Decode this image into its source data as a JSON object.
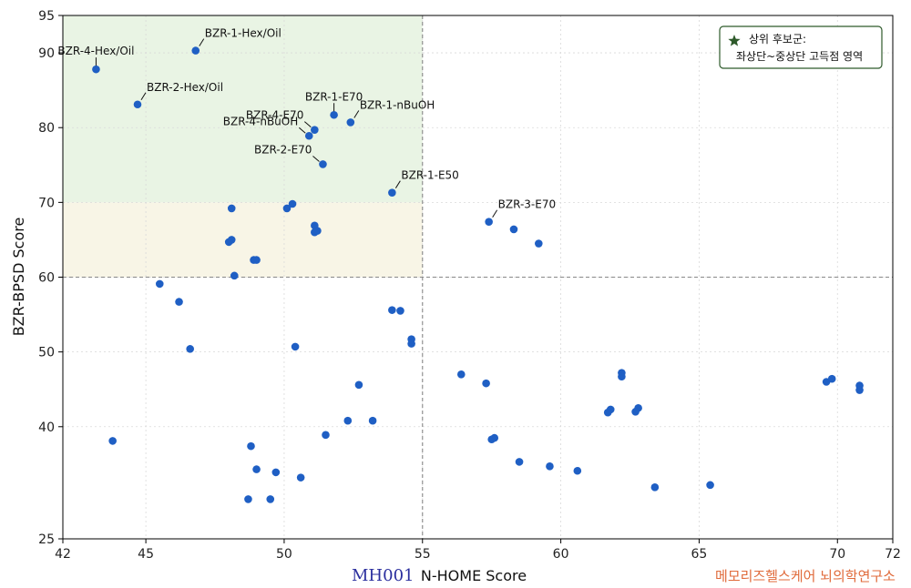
{
  "chart_data": {
    "type": "scatter",
    "xlabel": "N-HOME Score",
    "ylabel": "BZR-BPSD Score",
    "xlim": [
      42,
      72
    ],
    "ylim": [
      25,
      95
    ],
    "x_ticks": [
      42,
      45,
      50,
      55,
      60,
      65,
      70,
      72
    ],
    "y_ticks": [
      25,
      40,
      50,
      60,
      70,
      80,
      90,
      95
    ],
    "x_threshold": 55,
    "y_threshold": 60,
    "grid": true,
    "colors": {
      "point": "#1f5fc4",
      "zone_green": "#e9f4e4",
      "zone_yellow": "#f8f5e6",
      "legend_star": "#2e5a2b",
      "legend_border": "#2e5a2b"
    },
    "legend": {
      "position": "top-right",
      "marker": "star",
      "text": [
        "상위 후보군:",
        "좌상단~중상단 고득점 영역"
      ]
    },
    "annotations": [
      {
        "text": "BZR-1-Hex/Oil",
        "x": 46.8,
        "y": 90.3,
        "side": "right"
      },
      {
        "text": "BZR-4-Hex/Oil",
        "x": 43.2,
        "y": 87.8,
        "side": "up"
      },
      {
        "text": "BZR-2-Hex/Oil",
        "x": 44.7,
        "y": 83.1,
        "side": "right"
      },
      {
        "text": "BZR-1-E70",
        "x": 51.8,
        "y": 81.7,
        "side": "up"
      },
      {
        "text": "BZR-1-nBuOH",
        "x": 52.4,
        "y": 80.7,
        "side": "right"
      },
      {
        "text": "BZR-4-E70",
        "x": 51.1,
        "y": 79.7,
        "side": "left"
      },
      {
        "text": "BZR-4-nBuOH",
        "x": 50.9,
        "y": 78.9,
        "side": "left"
      },
      {
        "text": "BZR-2-E70",
        "x": 51.4,
        "y": 75.1,
        "side": "left"
      },
      {
        "text": "BZR-1-E50",
        "x": 53.9,
        "y": 71.3,
        "side": "right"
      },
      {
        "text": "BZR-3-E70",
        "x": 57.4,
        "y": 67.4,
        "side": "right"
      }
    ],
    "points": [
      [
        46.8,
        90.3
      ],
      [
        43.2,
        87.8
      ],
      [
        44.7,
        83.1
      ],
      [
        51.8,
        81.7
      ],
      [
        52.4,
        80.7
      ],
      [
        51.1,
        79.7
      ],
      [
        50.9,
        78.9
      ],
      [
        51.4,
        75.1
      ],
      [
        53.9,
        71.3
      ],
      [
        57.4,
        67.4
      ],
      [
        58.3,
        66.4
      ],
      [
        59.2,
        64.5
      ],
      [
        48.1,
        69.2
      ],
      [
        50.1,
        69.2
      ],
      [
        50.3,
        69.8
      ],
      [
        51.1,
        66.9
      ],
      [
        51.2,
        66.2
      ],
      [
        51.1,
        66.0
      ],
      [
        48.1,
        65.0
      ],
      [
        48.0,
        64.7
      ],
      [
        48.9,
        62.3
      ],
      [
        49.0,
        62.3
      ],
      [
        48.2,
        60.2
      ],
      [
        45.5,
        59.1
      ],
      [
        46.2,
        56.7
      ],
      [
        53.9,
        55.6
      ],
      [
        54.2,
        55.5
      ],
      [
        54.6,
        51.7
      ],
      [
        54.6,
        51.1
      ],
      [
        46.6,
        50.4
      ],
      [
        50.4,
        50.7
      ],
      [
        56.4,
        47.0
      ],
      [
        57.3,
        45.8
      ],
      [
        52.7,
        45.6
      ],
      [
        52.3,
        40.8
      ],
      [
        53.2,
        40.8
      ],
      [
        51.5,
        38.9
      ],
      [
        57.6,
        38.5
      ],
      [
        57.5,
        38.3
      ],
      [
        43.8,
        38.1
      ],
      [
        48.8,
        37.4
      ],
      [
        49.0,
        34.3
      ],
      [
        49.7,
        33.9
      ],
      [
        50.6,
        33.2
      ],
      [
        58.5,
        35.3
      ],
      [
        59.6,
        34.7
      ],
      [
        60.6,
        34.1
      ],
      [
        62.2,
        47.2
      ],
      [
        62.2,
        46.7
      ],
      [
        61.8,
        42.3
      ],
      [
        61.7,
        41.9
      ],
      [
        62.8,
        42.5
      ],
      [
        62.7,
        42.0
      ],
      [
        63.4,
        31.9
      ],
      [
        65.4,
        32.2
      ],
      [
        48.7,
        30.3
      ],
      [
        49.5,
        30.3
      ],
      [
        69.6,
        46.0
      ],
      [
        69.8,
        46.4
      ],
      [
        70.8,
        45.5
      ],
      [
        70.8,
        44.9
      ]
    ]
  },
  "watermark": {
    "left": "MH001",
    "right": "메모리즈헬스케어 뇌의학연구소"
  }
}
